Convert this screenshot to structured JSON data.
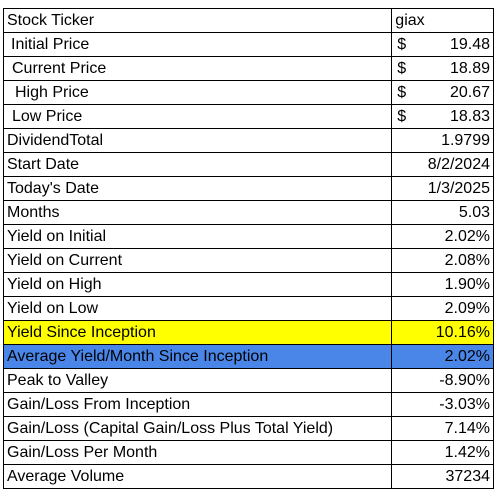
{
  "colors": {
    "highlight_yellow": "#ffff00",
    "highlight_blue": "#4a86e8"
  },
  "rows": [
    {
      "label": "Stock Ticker",
      "value": "giax"
    },
    {
      "label": "Initial Price",
      "currency": "$",
      "value": "19.48"
    },
    {
      "label": "Current Price",
      "currency": "$",
      "value": "18.89"
    },
    {
      "label": "High Price",
      "currency": "$",
      "value": "20.67"
    },
    {
      "label": "Low Price",
      "currency": "$",
      "value": "18.83"
    },
    {
      "label": "DividendTotal",
      "value": "1.9799"
    },
    {
      "label": "Start Date",
      "value": "8/2/2024"
    },
    {
      "label": "Today's Date",
      "value": "1/3/2025"
    },
    {
      "label": "Months",
      "value": "5.03"
    },
    {
      "label": "Yield on Initial",
      "value": "2.02%"
    },
    {
      "label": "Yield on Current",
      "value": "2.08%"
    },
    {
      "label": "Yield on High",
      "value": "1.90%"
    },
    {
      "label": "Yield on Low",
      "value": "2.09%"
    },
    {
      "label": "Yield Since Inception",
      "value": "10.16%"
    },
    {
      "label": "Average Yield/Month Since Inception",
      "value": "2.02%"
    },
    {
      "label": "Peak to Valley",
      "value": "-8.90%"
    },
    {
      "label": "Gain/Loss From Inception",
      "value": "-3.03%"
    },
    {
      "label": "Gain/Loss (Capital Gain/Loss Plus Total Yield)",
      "value": "7.14%"
    },
    {
      "label": "Gain/Loss Per Month",
      "value": "1.42%"
    },
    {
      "label": "Average Volume",
      "value": "37234"
    }
  ]
}
